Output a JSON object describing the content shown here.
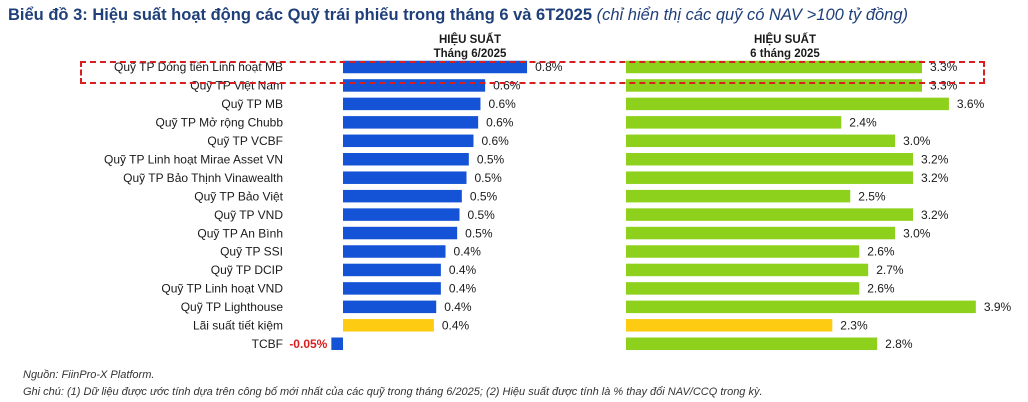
{
  "title": {
    "main": "Biểu đồ 3: Hiệu suất hoạt động các Quỹ trái phiếu trong tháng 6 và 6T2025",
    "note": "(chỉ hiển thị các quỹ có NAV >100 tỷ đồng)"
  },
  "colors": {
    "blue": "#1553d6",
    "green": "#8dd11c",
    "yellow": "#fccb12",
    "highlight": "#d81e1e",
    "negative_label": "#d81e1e"
  },
  "chart_data": [
    {
      "type": "bar",
      "orientation": "horizontal",
      "title": "HIỆU SUẤT",
      "subtitle": "Tháng 6/2025",
      "categories": [
        "Quỹ TP Dòng tiền Linh hoạt MB",
        "Quỹ TP Việt Nam",
        "Quỹ TP MB",
        "Quỹ TP Mở rộng Chubb",
        "Quỹ TP VCBF",
        "Quỹ TP Linh hoạt Mirae Asset VN",
        "Quỹ TP Bảo Thịnh Vinawealth",
        "Quỹ TP Bảo Việt",
        "Quỹ TP VND",
        "Quỹ TP An Bình",
        "Quỹ TP SSI",
        "Quỹ TP DCIP",
        "Quỹ TP Linh hoạt VND",
        "Quỹ TP Lighthouse",
        "Lãi suất tiết kiệm",
        "TCBF"
      ],
      "values": [
        0.8,
        0.6,
        0.6,
        0.6,
        0.6,
        0.5,
        0.5,
        0.5,
        0.5,
        0.5,
        0.4,
        0.4,
        0.4,
        0.4,
        0.4,
        -0.05
      ],
      "value_labels": [
        "0.8%",
        "0.6%",
        "0.6%",
        "0.6%",
        "0.6%",
        "0.5%",
        "0.5%",
        "0.5%",
        "0.5%",
        "0.5%",
        "0.4%",
        "0.4%",
        "0.4%",
        "0.4%",
        "0.4%",
        "-0.05%"
      ],
      "bar_precise": [
        0.79,
        0.61,
        0.59,
        0.58,
        0.56,
        0.54,
        0.53,
        0.51,
        0.5,
        0.49,
        0.44,
        0.42,
        0.42,
        0.4,
        0.39,
        -0.05
      ],
      "bar_colors": [
        "blue",
        "blue",
        "blue",
        "blue",
        "blue",
        "blue",
        "blue",
        "blue",
        "blue",
        "blue",
        "blue",
        "blue",
        "blue",
        "blue",
        "yellow",
        "blue"
      ],
      "unit": "%"
    },
    {
      "type": "bar",
      "orientation": "horizontal",
      "title": "HIỆU SUẤT",
      "subtitle": "6 tháng 2025",
      "values": [
        3.3,
        3.3,
        3.6,
        2.4,
        3.0,
        3.2,
        3.2,
        2.5,
        3.2,
        3.0,
        2.6,
        2.7,
        2.6,
        3.9,
        2.3,
        2.8
      ],
      "value_labels": [
        "3.3%",
        "3.3%",
        "3.6%",
        "2.4%",
        "3.0%",
        "3.2%",
        "3.2%",
        "2.5%",
        "3.2%",
        "3.0%",
        "2.6%",
        "2.7%",
        "2.6%",
        "3.9%",
        "2.3%",
        "2.8%"
      ],
      "bar_colors": [
        "green",
        "green",
        "green",
        "green",
        "green",
        "green",
        "green",
        "green",
        "green",
        "green",
        "green",
        "green",
        "green",
        "green",
        "yellow",
        "green"
      ],
      "unit": "%"
    }
  ],
  "highlight": {
    "category": "Quỹ TP Dòng tiền Linh hoạt MB"
  },
  "footer": {
    "source": "Nguồn: FiinPro-X Platform.",
    "note": "Ghi chú: (1) Dữ liệu được ước tính dựa trên công bố mới nhất của các quỹ trong tháng 6/2025; (2) Hiệu suất được tính là % thay đổi NAV/CCQ trong kỳ."
  }
}
